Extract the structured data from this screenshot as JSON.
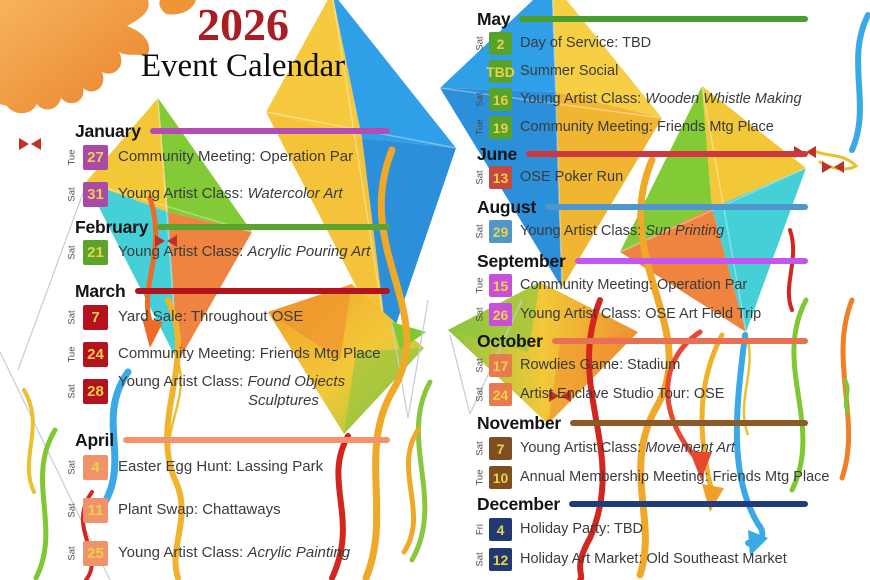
{
  "page_title": {
    "year": "2026",
    "subtitle": "Event Calendar"
  },
  "colors": {
    "year_text": "#a81e24",
    "subtitle_text": "#0d0d0d",
    "event_text": "#3b3b3b",
    "date_number": "#ecd04a",
    "weekday_text": "#4a4a4a"
  },
  "decorations": [
    "sun",
    "kite-blue-yellow",
    "kite-teal-green-orange",
    "kite-bowed-orange-green",
    "kite-green-yellow-teal",
    "kite-bowed-green-orange",
    "ribbons",
    "red-bows",
    "kite-strings"
  ],
  "calendar": {
    "columns": [
      {
        "side": "left",
        "months": [
          {
            "name": "January",
            "line_color": "#b44cb4",
            "box_color": "#aa4aa6",
            "events": [
              {
                "day": "Tue",
                "date": "27",
                "text": "Community Meeting: Operation Par",
                "italic": ""
              },
              {
                "day": "Sat",
                "date": "31",
                "text": "Young Artist Class: ",
                "italic": "Watercolor Art"
              }
            ]
          },
          {
            "name": "February",
            "line_color": "#5aa32c",
            "box_color": "#5ba32b",
            "events": [
              {
                "day": "Sat",
                "date": "21",
                "text": "Young Artist Class: ",
                "italic": "Acrylic Pouring Art"
              }
            ]
          },
          {
            "name": "March",
            "line_color": "#b5121f",
            "box_color": "#b5121f",
            "events": [
              {
                "day": "Sat",
                "date": "7",
                "text": "Yard Sale: Throughout OSE",
                "italic": ""
              },
              {
                "day": "Tue",
                "date": "24",
                "text": "Community Meeting: Friends Mtg Place",
                "italic": ""
              },
              {
                "day": "Sat",
                "date": "28",
                "text": "Young Artist Class: ",
                "italic": "Found Objects",
                "line2": "Sculptures"
              }
            ]
          },
          {
            "name": "April",
            "line_color": "#f4936b",
            "box_color": "#f0926a",
            "events": [
              {
                "day": "Sat",
                "date": "4",
                "text": "Easter Egg Hunt: Lassing Park",
                "italic": ""
              },
              {
                "day": "Sat",
                "date": "11",
                "text": "Plant Swap: Chattaways",
                "italic": ""
              },
              {
                "day": "Sat",
                "date": "25",
                "text": "Young Artist Class: ",
                "italic": "Acrylic Painting"
              }
            ]
          }
        ]
      },
      {
        "side": "right",
        "months": [
          {
            "name": "May",
            "line_color": "#4a9e2e",
            "box_color": "#55a22d",
            "events": [
              {
                "day": "Sat",
                "date": "2",
                "text": "Day of Service: TBD",
                "italic": ""
              },
              {
                "day": "",
                "date": "TBD",
                "text": "Summer Social",
                "italic": ""
              },
              {
                "day": "Sat",
                "date": "16",
                "text": "Young Artist Class: ",
                "italic": "Wooden Whistle Making"
              },
              {
                "day": "Tue",
                "date": "19",
                "text": "Community Meeting: Friends Mtg Place",
                "italic": ""
              }
            ]
          },
          {
            "name": "June",
            "line_color": "#cc3a40",
            "box_color": "#c74840",
            "events": [
              {
                "day": "Sat",
                "date": "13",
                "text": "OSE Poker Run",
                "italic": ""
              }
            ]
          },
          {
            "name": "August",
            "line_color": "#4e96cc",
            "box_color": "#4d97cb",
            "events": [
              {
                "day": "Sat",
                "date": "29",
                "text": "Young Artist Class: ",
                "italic": "Sun Printing"
              }
            ]
          },
          {
            "name": "September",
            "line_color": "#c655ef",
            "box_color": "#c84fd8",
            "events": [
              {
                "day": "Tue",
                "date": "15",
                "text": "Community Meeting: Operation Par",
                "italic": ""
              },
              {
                "day": "Sat",
                "date": "26",
                "text": "Young Artist Class: OSE Art Field Trip",
                "italic": ""
              }
            ]
          },
          {
            "name": "October",
            "line_color": "#e87055",
            "box_color": "#e87a50",
            "events": [
              {
                "day": "Sat",
                "date": "17",
                "text": "Rowdies Game: Stadium",
                "italic": ""
              },
              {
                "day": "Sat",
                "date": "24",
                "text": "Artist Enclave Studio Tour: OSE",
                "italic": ""
              }
            ]
          },
          {
            "name": "November",
            "line_color": "#8a5a28",
            "box_color": "#7d4e20",
            "events": [
              {
                "day": "Sat",
                "date": "7",
                "text": "Young Artist Class: ",
                "italic": "Movement Art"
              },
              {
                "day": "Tue",
                "date": "10",
                "text": "Annual Membership Meeting: Friends Mtg Place",
                "italic": "",
                "small": true
              }
            ]
          },
          {
            "name": "December",
            "line_color": "#1f3d7a",
            "box_color": "#1e3a70",
            "events": [
              {
                "day": "Fri",
                "date": "4",
                "text": "Holiday Party: TBD",
                "italic": ""
              },
              {
                "day": "Sat",
                "date": "12",
                "text": "Holiday Art Market: Old Southeast Market",
                "italic": ""
              }
            ]
          }
        ]
      }
    ]
  }
}
